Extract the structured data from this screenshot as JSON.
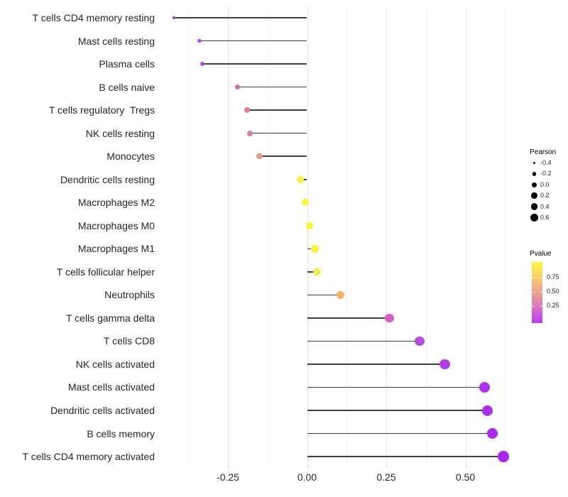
{
  "chart_data": {
    "type": "lollipop",
    "orientation": "horizontal",
    "description": "Pearson correlation lollipop chart of immune cell fractions; dot size = Pearson, dot color = Pvalue",
    "x_axis": {
      "tick_labels": [
        "-0.25",
        "0.00",
        "0.25",
        "0.50"
      ],
      "tick_values": [
        -0.25,
        0.0,
        0.25,
        0.5
      ],
      "minor_tick_values": [
        -0.375,
        -0.125,
        0.125,
        0.375,
        0.625
      ],
      "range": [
        -0.47,
        0.68
      ],
      "grid": "on"
    },
    "rows": [
      {
        "label": "T cells CD4 memory resting",
        "pearson": -0.42,
        "color": "#A538DC"
      },
      {
        "label": "Mast cells resting",
        "pearson": -0.34,
        "color": "#B44CD8"
      },
      {
        "label": "Plasma cells",
        "pearson": -0.33,
        "color": "#B248DA"
      },
      {
        "label": "B cells naive",
        "pearson": -0.22,
        "color": "#CE6CA4"
      },
      {
        "label": "T cells regulatory  Tregs",
        "pearson": -0.19,
        "color": "#DC8393"
      },
      {
        "label": "NK cells resting",
        "pearson": -0.18,
        "color": "#D98096"
      },
      {
        "label": "Monocytes",
        "pearson": -0.15,
        "color": "#E69B80"
      },
      {
        "label": "Dendritic cells resting",
        "pearson": -0.022,
        "color": "#F9EF45"
      },
      {
        "label": "Macrophages M2",
        "pearson": -0.005,
        "color": "#FBF43C"
      },
      {
        "label": "Macrophages M0",
        "pearson": 0.008,
        "color": "#FAF33D"
      },
      {
        "label": "Macrophages M1",
        "pearson": 0.025,
        "color": "#FAF23E"
      },
      {
        "label": "T cells follicular helper",
        "pearson": 0.032,
        "color": "#F8EE49"
      },
      {
        "label": "Neutrophils",
        "pearson": 0.105,
        "color": "#F1B16D"
      },
      {
        "label": "T cells gamma delta",
        "pearson": 0.26,
        "color": "#D05FBE"
      },
      {
        "label": "T cells CD8",
        "pearson": 0.355,
        "color": "#B44FD8"
      },
      {
        "label": "NK cells activated",
        "pearson": 0.435,
        "color": "#AE3EE3"
      },
      {
        "label": "Mast cells activated",
        "pearson": 0.56,
        "color": "#AB30E9"
      },
      {
        "label": "Dendritic cells activated",
        "pearson": 0.57,
        "color": "#AA2FEA"
      },
      {
        "label": "B cells memory",
        "pearson": 0.585,
        "color": "#A92CEC"
      },
      {
        "label": "T cells CD4 memory activated",
        "pearson": 0.62,
        "color": "#A828EE"
      }
    ],
    "legends": {
      "size": {
        "title": "Pearson",
        "items": [
          {
            "label": "-0.4",
            "value": -0.4
          },
          {
            "label": "-0.2",
            "value": -0.2
          },
          {
            "label": "0.0",
            "value": 0.0
          },
          {
            "label": "0.2",
            "value": 0.2
          },
          {
            "label": "0.4",
            "value": 0.4
          },
          {
            "label": "0.6",
            "value": 0.6
          }
        ]
      },
      "color": {
        "title": "Pvalue",
        "tick_labels": [
          "0.75",
          "0.50",
          "0.25"
        ],
        "gradient_top_to_bottom": [
          "#FCF63C",
          "#F6CE72",
          "#EEA38F",
          "#D873C8",
          "#BB3BF2"
        ]
      }
    }
  }
}
